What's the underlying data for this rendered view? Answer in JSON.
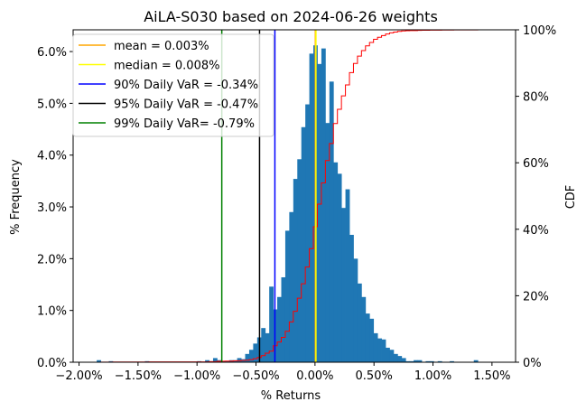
{
  "chart_data": {
    "type": "bar",
    "title": "AiLA-S030 based on 2024-06-26 weights",
    "xlabel": "% Returns",
    "ylabel": "% Frequency",
    "y2label": "CDF",
    "xlim": [
      -0.0205,
      0.017
    ],
    "ylim": [
      0,
      0.0642
    ],
    "y2lim": [
      0,
      1.0
    ],
    "x_ticks": [
      -0.02,
      -0.015,
      -0.01,
      -0.005,
      0.0,
      0.005,
      0.01,
      0.015
    ],
    "x_tick_labels": [
      "−2.00%",
      "−1.50%",
      "−1.00%",
      "−0.50%",
      "0.00%",
      "0.50%",
      "1.00%",
      "1.50%"
    ],
    "y_ticks": [
      0,
      0.01,
      0.02,
      0.03,
      0.04,
      0.05,
      0.06
    ],
    "y_tick_labels": [
      "0.0%",
      "1.0%",
      "2.0%",
      "3.0%",
      "4.0%",
      "5.0%",
      "6.0%"
    ],
    "y2_ticks": [
      0,
      0.2,
      0.4,
      0.6,
      0.8,
      1.0
    ],
    "y2_tick_labels": [
      "0%",
      "20%",
      "40%",
      "60%",
      "80%",
      "100%"
    ],
    "histogram": {
      "bin_start": -0.0185,
      "bin_width": 0.00034,
      "bar_color": "#1f77b4",
      "frequencies": [
        0.0004,
        0,
        0,
        0.0002,
        0,
        0,
        0,
        0,
        0,
        0,
        0,
        0,
        0.0002,
        0,
        0,
        0,
        0,
        0,
        0,
        0,
        0,
        0,
        0,
        0,
        0,
        0.0002,
        0,
        0.0004,
        0.0002,
        0.0008,
        0.0004,
        0.0002,
        0.0002,
        0.0004,
        0.0004,
        0.0008,
        0.0006,
        0.0016,
        0.0024,
        0.0036,
        0.0048,
        0.0066,
        0.0056,
        0.0146,
        0.0102,
        0.0126,
        0.0164,
        0.0254,
        0.029,
        0.0354,
        0.0392,
        0.0454,
        0.0498,
        0.0596,
        0.0612,
        0.0576,
        0.0606,
        0.0462,
        0.0542,
        0.0386,
        0.0364,
        0.0298,
        0.0334,
        0.0246,
        0.02,
        0.0152,
        0.0126,
        0.0094,
        0.0084,
        0.0056,
        0.0046,
        0.0044,
        0.0028,
        0.0024,
        0.0016,
        0.0012,
        0.0008,
        0.0002,
        0.0002,
        0.0004,
        0.0004,
        0,
        0.0002,
        0.0002,
        0,
        0.0002,
        0,
        0,
        0.0002,
        0,
        0,
        0,
        0,
        0,
        0.0004
      ]
    },
    "cdf_color": "#ff0000",
    "vlines": [
      {
        "label": "mean = 0.003%",
        "x": 3e-05,
        "color": "#ffa500"
      },
      {
        "label": "median = 0.008%",
        "x": 8e-05,
        "color": "#ffff00"
      },
      {
        "label": "90% Daily VaR = -0.34%",
        "x": -0.0034,
        "color": "#0000ff"
      },
      {
        "label": "95% Daily VaR = -0.47%",
        "x": -0.0047,
        "color": "#000000"
      },
      {
        "label": "99% Daily VaR= -0.79%",
        "x": -0.0079,
        "color": "#008000"
      }
    ],
    "legend_position": "top-left",
    "grid": false
  }
}
